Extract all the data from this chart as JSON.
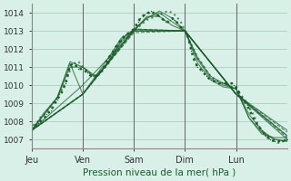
{
  "title": "Pression niveau de la mer( hPa )",
  "bg_color": "#d8f0e8",
  "grid_color": "#a0c8b0",
  "line_color": "#1a5c2a",
  "ylim": [
    1006.5,
    1014.5
  ],
  "yticks": [
    1007,
    1008,
    1009,
    1010,
    1011,
    1012,
    1013,
    1014
  ],
  "day_labels": [
    "Jeu",
    "Ven",
    "Sam",
    "Dim",
    "Lun"
  ],
  "day_positions": [
    0,
    24,
    48,
    72,
    96
  ],
  "total_hours": 120,
  "curves": [
    {
      "x": [
        0,
        1,
        2,
        3,
        4,
        5,
        6,
        8,
        10,
        12,
        14,
        16,
        18,
        20,
        22,
        24,
        26,
        28,
        30,
        32,
        34,
        36,
        38,
        40,
        42,
        44,
        46,
        48,
        50,
        52,
        54,
        56,
        58,
        60,
        62,
        64,
        66,
        68,
        70,
        72,
        74,
        76,
        78,
        80,
        82,
        84,
        86,
        88,
        90,
        92,
        94,
        96,
        98,
        100,
        102,
        104,
        106,
        108,
        110,
        112,
        114,
        116,
        118,
        120
      ],
      "y": [
        1007.5,
        1007.8,
        1007.9,
        1008.0,
        1008.2,
        1008.3,
        1008.4,
        1008.7,
        1009.0,
        1009.3,
        1009.7,
        1010.2,
        1010.8,
        1011.2,
        1011.3,
        1011.0,
        1010.8,
        1010.6,
        1010.5,
        1010.6,
        1010.9,
        1011.2,
        1011.7,
        1012.1,
        1012.4,
        1012.7,
        1012.9,
        1013.0,
        1013.2,
        1013.4,
        1013.6,
        1013.7,
        1013.8,
        1013.9,
        1014.0,
        1014.1,
        1014.0,
        1013.8,
        1013.5,
        1013.0,
        1012.5,
        1012.0,
        1011.5,
        1011.2,
        1010.8,
        1010.5,
        1010.3,
        1010.2,
        1010.1,
        1010.0,
        1009.9,
        1009.8,
        1009.5,
        1009.2,
        1008.8,
        1008.4,
        1007.9,
        1007.5,
        1007.2,
        1007.0,
        1006.9,
        1006.8,
        1006.9,
        1007.0
      ],
      "style": "dotted",
      "lw": 1.5
    },
    {
      "x": [
        0,
        6,
        12,
        18,
        24,
        30,
        36,
        42,
        48,
        54,
        60,
        66,
        72,
        78,
        84,
        90,
        96,
        102,
        108,
        114,
        120
      ],
      "y": [
        1007.5,
        1008.4,
        1009.3,
        1011.0,
        1011.0,
        1010.5,
        1011.2,
        1012.4,
        1013.0,
        1013.7,
        1014.0,
        1013.5,
        1013.0,
        1011.5,
        1010.5,
        1010.1,
        1009.8,
        1008.4,
        1007.5,
        1007.0,
        1006.9
      ],
      "style": "solid",
      "lw": 0.8
    },
    {
      "x": [
        0,
        6,
        12,
        18,
        24,
        30,
        36,
        42,
        48,
        54,
        60,
        66,
        72,
        78,
        84,
        90,
        96,
        102,
        108,
        114,
        120
      ],
      "y": [
        1007.5,
        1008.4,
        1009.3,
        1011.2,
        1009.5,
        1010.5,
        1011.5,
        1012.6,
        1013.0,
        1013.8,
        1013.8,
        1013.3,
        1013.0,
        1011.2,
        1010.3,
        1009.9,
        1009.8,
        1008.2,
        1007.3,
        1007.1,
        1007.1
      ],
      "style": "solid",
      "lw": 0.8
    },
    {
      "x": [
        0,
        6,
        12,
        18,
        24,
        30,
        36,
        42,
        48,
        54,
        60,
        66,
        72,
        78,
        84,
        90,
        96,
        102,
        108,
        114,
        120
      ],
      "y": [
        1007.5,
        1008.5,
        1009.3,
        1011.3,
        1011.0,
        1010.4,
        1011.3,
        1012.5,
        1013.1,
        1013.7,
        1014.1,
        1013.7,
        1013.0,
        1011.4,
        1010.4,
        1010.0,
        1009.8,
        1008.2,
        1007.4,
        1007.0,
        1006.9
      ],
      "style": "solid",
      "lw": 0.8
    },
    {
      "x": [
        0,
        24,
        48,
        72,
        96,
        120
      ],
      "y": [
        1007.5,
        1009.5,
        1013.0,
        1013.0,
        1009.5,
        1007.2
      ],
      "style": "solid",
      "lw": 1.0
    },
    {
      "x": [
        0,
        24,
        48,
        72,
        96,
        120
      ],
      "y": [
        1007.5,
        1009.5,
        1013.1,
        1013.0,
        1009.5,
        1007.0
      ],
      "style": "solid",
      "lw": 0.8
    },
    {
      "x": [
        0,
        24,
        48,
        72,
        96,
        120
      ],
      "y": [
        1007.5,
        1010.0,
        1013.0,
        1013.0,
        1009.5,
        1007.5
      ],
      "style": "solid",
      "lw": 0.8
    },
    {
      "x": [
        0,
        24,
        48,
        72,
        96,
        120
      ],
      "y": [
        1007.5,
        1009.5,
        1012.9,
        1013.0,
        1009.5,
        1007.4
      ],
      "style": "dashed",
      "lw": 0.8
    },
    {
      "x": [
        0,
        24,
        48,
        72,
        96,
        120
      ],
      "y": [
        1007.5,
        1009.5,
        1013.0,
        1013.0,
        1009.5,
        1007.2
      ],
      "style": "dashed",
      "lw": 0.8
    },
    {
      "x": [
        0,
        24,
        48,
        72,
        96,
        120
      ],
      "y": [
        1007.5,
        1009.5,
        1013.1,
        1013.0,
        1009.5,
        1007.1
      ],
      "style": "dashed",
      "lw": 0.8
    }
  ],
  "main_curve_x": [
    0,
    1,
    2,
    3,
    4,
    5,
    6,
    7,
    8,
    9,
    10,
    12,
    14,
    16,
    18,
    20,
    22,
    24,
    26,
    28,
    30,
    32,
    34,
    36,
    38,
    40,
    42,
    44,
    46,
    48,
    49,
    50,
    51,
    52,
    53,
    54,
    55,
    56,
    57,
    58,
    59,
    60,
    61,
    62,
    63,
    64,
    65,
    66,
    67,
    68,
    70,
    72,
    73,
    74,
    75,
    76,
    77,
    78,
    80,
    82,
    84,
    86,
    88,
    90,
    92,
    94,
    95,
    96,
    97,
    98,
    100,
    102,
    104,
    106,
    108,
    110,
    112,
    114,
    116,
    118,
    120
  ],
  "main_curve_y": [
    1007.5,
    1007.7,
    1007.8,
    1007.9,
    1008.0,
    1008.1,
    1008.2,
    1008.4,
    1008.5,
    1008.6,
    1008.8,
    1009.2,
    1009.6,
    1010.1,
    1011.1,
    1011.2,
    1010.9,
    1010.9,
    1010.7,
    1010.5,
    1010.5,
    1010.7,
    1011.0,
    1011.5,
    1011.8,
    1012.2,
    1012.5,
    1012.8,
    1012.9,
    1013.1,
    1013.3,
    1013.5,
    1013.7,
    1013.8,
    1013.9,
    1014.0,
    1014.0,
    1014.1,
    1014.0,
    1014.0,
    1013.9,
    1013.8,
    1013.7,
    1013.6,
    1013.5,
    1013.5,
    1013.6,
    1013.7,
    1013.6,
    1013.5,
    1013.2,
    1013.0,
    1012.8,
    1012.4,
    1011.9,
    1011.5,
    1011.2,
    1011.0,
    1010.8,
    1010.5,
    1010.3,
    1010.2,
    1010.1,
    1010.1,
    1010.1,
    1010.1,
    1010.0,
    1009.9,
    1009.7,
    1009.4,
    1009.1,
    1008.7,
    1008.2,
    1007.8,
    1007.5,
    1007.2,
    1007.0,
    1006.9,
    1006.9,
    1006.9,
    1007.0
  ]
}
